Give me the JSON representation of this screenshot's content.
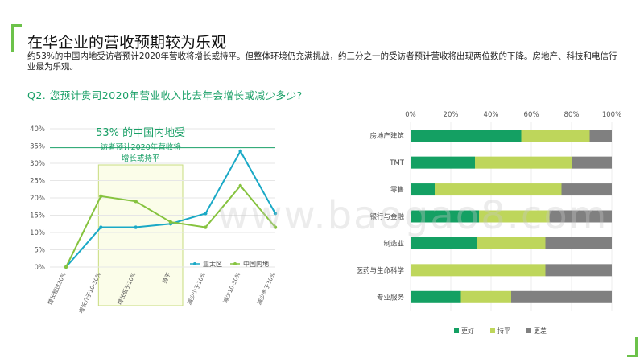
{
  "page": {
    "title": "在华企业的营收预期较为乐观",
    "subtitle": "约53%的中国内地受访者预计2020年营收将增长或持平。但整体环境仍充满挑战，约三分之一的受访者预计营收将出现两位数的下降。房地产、科技和电信行业最为乐观。",
    "question": "Q2. 您预计贵司2020年营业收入比去年会增长或减少多少?",
    "watermark": "www.baogao8.com"
  },
  "chart_data": [
    {
      "type": "line",
      "categories": [
        "增长超过30%",
        "增长介于10-30%",
        "增长低于10%",
        "持平",
        "减少少于10%",
        "减少10-30%",
        "减少多于30%"
      ],
      "series": [
        {
          "name": "亚太区",
          "values": [
            0,
            11.5,
            11.5,
            12.5,
            15.5,
            33.5,
            15.5
          ],
          "color": "#1aa9c6"
        },
        {
          "name": "中国内地",
          "values": [
            0,
            20.5,
            19,
            13,
            11.5,
            23.5,
            11.5
          ],
          "color": "#86c33f"
        }
      ],
      "yticks": [
        "0%",
        "5%",
        "10%",
        "15%",
        "20%",
        "25%",
        "30%",
        "35%",
        "40%"
      ],
      "ylim": [
        0,
        40
      ],
      "legend_position": "bottom-right",
      "annotation": {
        "lines": [
          "53% 的中国内地受",
          "访者预计2020年营收将",
          "增长或持平"
        ],
        "reference_value": 34.5,
        "highlight_categories": [
          1,
          3
        ]
      }
    },
    {
      "type": "bar",
      "orientation": "horizontal",
      "stacked": true,
      "categories": [
        "房地产建筑",
        "TMT",
        "零售",
        "银行与金融",
        "制造业",
        "医药与生命科学",
        "专业服务"
      ],
      "series": [
        {
          "name": "更好",
          "values": [
            55,
            32,
            12,
            34,
            33,
            0,
            25
          ],
          "color": "#14a063"
        },
        {
          "name": "持平",
          "values": [
            34,
            48,
            63,
            35,
            34,
            67,
            25
          ],
          "color": "#bed65b"
        },
        {
          "name": "更差",
          "values": [
            11,
            20,
            25,
            31,
            33,
            33,
            50
          ],
          "color": "#808080"
        }
      ],
      "xticks": [
        "0%",
        "20%",
        "40%",
        "60%",
        "80%",
        "100%"
      ],
      "xlim": [
        0,
        100
      ],
      "legend_position": "bottom"
    }
  ]
}
